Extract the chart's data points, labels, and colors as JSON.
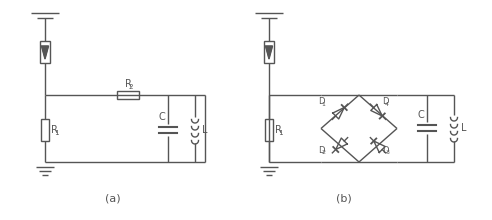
{
  "bg_color": "#ffffff",
  "line_color": "#555555",
  "fig_width": 4.92,
  "fig_height": 2.2,
  "dpi": 100,
  "label_a": "(a)",
  "label_b": "(b)",
  "R1_label": "R",
  "R1_sub": "1",
  "R2_label": "R",
  "R2_sub": "2",
  "C_label": "C",
  "L_label": "L",
  "D1_label": "D",
  "D1_sub": "1",
  "D2_label": "D",
  "D2_sub": "2",
  "D3_label": "D",
  "D3_sub": "3",
  "D4_label": "D",
  "D4_sub": "4"
}
